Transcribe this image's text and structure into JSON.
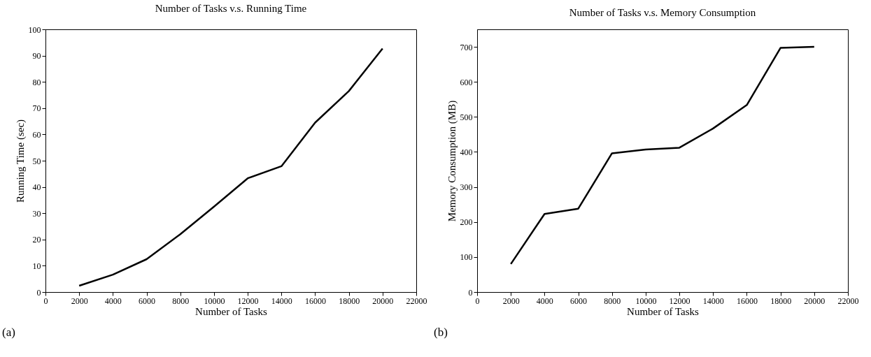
{
  "chart_data": [
    {
      "type": "line",
      "title": "Number of Tasks v.s. Running Time",
      "xlabel": "Number of Tasks",
      "ylabel": "Running Time (sec)",
      "annotations": [
        "(a)"
      ],
      "x": [
        2000,
        4000,
        6000,
        8000,
        10000,
        12000,
        14000,
        16000,
        18000,
        20000
      ],
      "series": [
        {
          "color": "#000000",
          "values": [
            2.4,
            6.6,
            12.5,
            22,
            32.5,
            43.3,
            47.9,
            64.5,
            76.5,
            92.7
          ]
        }
      ],
      "xlim": [
        0,
        22000
      ],
      "xticks": [
        0,
        2000,
        4000,
        6000,
        8000,
        10000,
        12000,
        14000,
        16000,
        18000,
        20000,
        22000
      ],
      "ylim": [
        0,
        100
      ],
      "yticks": [
        0,
        10,
        20,
        30,
        40,
        50,
        60,
        70,
        80,
        90,
        100
      ],
      "grid": false,
      "marker": "none",
      "line_style": "solid"
    },
    {
      "type": "line",
      "title": "Number of Tasks v.s. Memory Consumption",
      "xlabel": "Number of Tasks",
      "ylabel": "Memory Consumption (MB)",
      "annotations": [
        "(b)"
      ],
      "x": [
        2000,
        4000,
        6000,
        8000,
        10000,
        12000,
        14000,
        16000,
        18000,
        20000
      ],
      "series": [
        {
          "color": "#000000",
          "values": [
            80,
            223,
            238,
            396,
            407,
            412,
            467,
            534,
            697,
            700
          ]
        }
      ],
      "xlim": [
        0,
        22000
      ],
      "xticks": [
        0,
        2000,
        4000,
        6000,
        8000,
        10000,
        12000,
        14000,
        16000,
        18000,
        20000,
        22000
      ],
      "ylim": [
        0,
        750
      ],
      "yticks": [
        0,
        100,
        200,
        300,
        400,
        500,
        600,
        700
      ],
      "grid": false,
      "marker": "none",
      "line_style": "solid"
    }
  ]
}
